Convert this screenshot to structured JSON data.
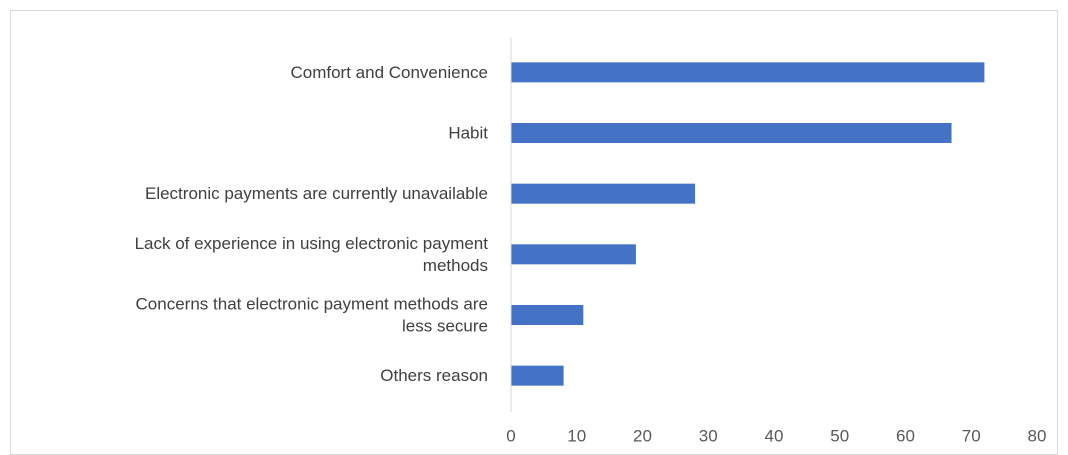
{
  "chart_data": {
    "type": "bar",
    "orientation": "horizontal",
    "categories": [
      "Comfort and Convenience",
      "Habit",
      "Electronic payments are currently unavailable",
      "Lack of experience in using electronic payment methods",
      "Concerns that electronic payment methods are less secure",
      "Others reason"
    ],
    "category_lines": [
      [
        "Comfort and Convenience"
      ],
      [
        "Habit"
      ],
      [
        "Electronic payments are currently unavailable"
      ],
      [
        "Lack of experience in using electronic payment",
        "methods"
      ],
      [
        "Concerns that electronic payment methods are",
        "less secure"
      ],
      [
        "Others reason"
      ]
    ],
    "values": [
      72,
      67,
      28,
      19,
      11,
      8
    ],
    "xlim": [
      0,
      80
    ],
    "xticks": [
      0,
      10,
      20,
      30,
      40,
      50,
      60,
      70,
      80
    ],
    "title": "",
    "xlabel": "",
    "ylabel": "",
    "grid": false,
    "bar_color": "#4472c4",
    "axis_color": "#d9d9d9"
  }
}
